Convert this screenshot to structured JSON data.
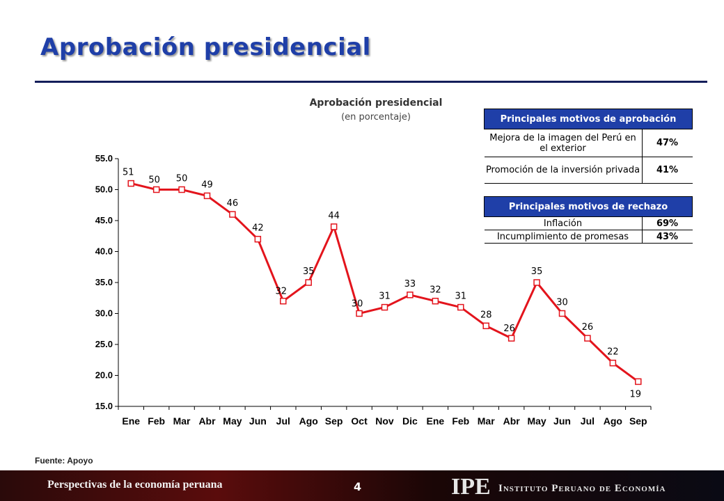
{
  "slide": {
    "title": "Aprobación presidencial",
    "source": "Fuente: Apoyo",
    "footer_text": "Perspectivas de la economía peruana",
    "page_number": "4",
    "logo_text": "IPE",
    "institution": "Instituto Peruano de Economía"
  },
  "chart_data": {
    "type": "line",
    "title": "Aprobación presidencial",
    "subtitle": "(en porcentaje)",
    "categories": [
      "Ene",
      "Feb",
      "Mar",
      "Abr",
      "May",
      "Jun",
      "Jul",
      "Ago",
      "Sep",
      "Oct",
      "Nov",
      "Dic",
      "Ene",
      "Feb",
      "Mar",
      "Abr",
      "May",
      "Jun",
      "Jul",
      "Ago",
      "Sep"
    ],
    "series": [
      {
        "values": [
          51,
          50,
          50,
          49,
          46,
          42,
          32,
          35,
          44,
          30,
          31,
          33,
          32,
          31,
          28,
          26,
          35,
          30,
          26,
          22,
          19
        ]
      }
    ],
    "ylim": [
      15,
      55
    ],
    "yticks": [
      "15.0",
      "20.0",
      "25.0",
      "30.0",
      "35.0",
      "40.0",
      "45.0",
      "50.0",
      "55.0"
    ],
    "line_color": "#e3141c",
    "grid": false
  },
  "tables": {
    "aprobacion": {
      "header": "Principales motivos de aprobación",
      "rows": [
        {
          "motivo": "Mejora de la imagen del Perú en el exterior",
          "pct": "47%"
        },
        {
          "motivo": "Promoción de la inversión privada",
          "pct": "41%"
        }
      ]
    },
    "rechazo": {
      "header": "Principales motivos de rechazo",
      "rows": [
        {
          "motivo": "Inflación",
          "pct": "69%"
        },
        {
          "motivo": "Incumplimiento de promesas",
          "pct": "43%"
        }
      ]
    }
  },
  "colors": {
    "title": "#1f3fa8",
    "table_header": "#1f3fa8",
    "rule": "#141e5a"
  }
}
